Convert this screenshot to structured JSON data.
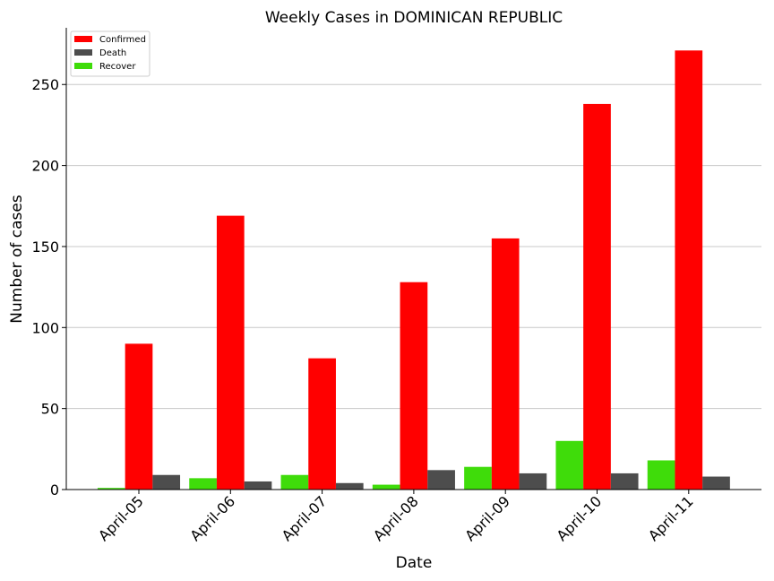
{
  "chart_data": {
    "type": "bar",
    "title": "Weekly Cases in DOMINICAN REPUBLIC",
    "xlabel": "Date",
    "ylabel": "Number of cases",
    "categories": [
      "April-05",
      "April-06",
      "April-07",
      "April-08",
      "April-09",
      "April-10",
      "April-11"
    ],
    "series": [
      {
        "name": "Recover",
        "color": "#3fdc0a",
        "values": [
          1,
          7,
          9,
          3,
          14,
          30,
          18
        ]
      },
      {
        "name": "Confirmed",
        "color": "#ff0000",
        "values": [
          90,
          169,
          81,
          128,
          155,
          238,
          271
        ]
      },
      {
        "name": "Death",
        "color": "#4d4d4d",
        "values": [
          9,
          5,
          4,
          12,
          10,
          10,
          8
        ]
      }
    ],
    "legend_order": [
      "Confirmed",
      "Death",
      "Recover"
    ],
    "ylim": [
      0,
      285
    ],
    "yticks": [
      0,
      50,
      100,
      150,
      200,
      250
    ],
    "grid": "horizontal",
    "legend_position": "top-left"
  }
}
